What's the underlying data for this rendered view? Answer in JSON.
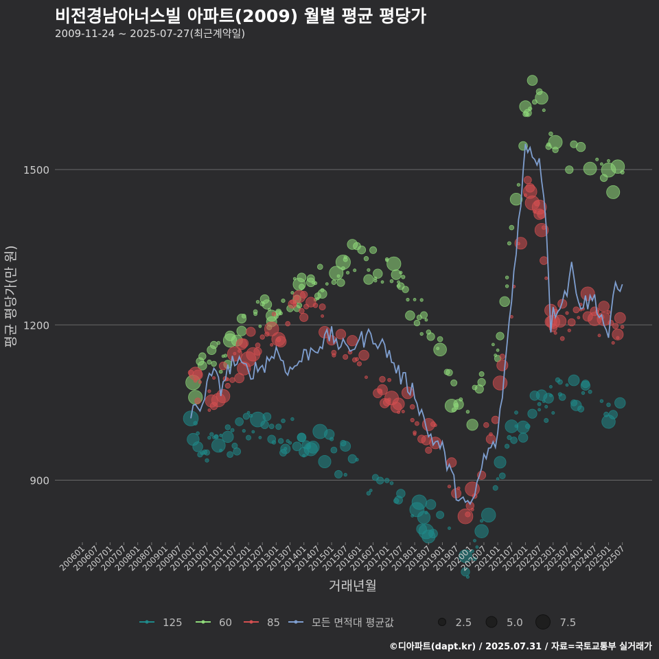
{
  "title": "비전경남아너스빌 아파트(2009) 월별 평균 평당가",
  "subtitle": "2009-11-24 ~ 2025-07-27(최근계약일)",
  "caption": "©디아파트(dapt.kr) / 2025.07.31 / 자료=국토교통부 실거래가",
  "chart_data": {
    "type": "line",
    "xlabel": "거래년월",
    "ylabel": "평균 평당가(만 원)",
    "ylim": [
      780,
      1740
    ],
    "yticks": [
      900,
      1200,
      1500
    ],
    "grid": true,
    "legend_position": "bottom",
    "x_start": "200601",
    "x_end": "202508",
    "x_tick_labels": [
      "200601",
      "200607",
      "200701",
      "200707",
      "200801",
      "200807",
      "200901",
      "200907",
      "201001",
      "201007",
      "201101",
      "201107",
      "201201",
      "201207",
      "201301",
      "201307",
      "201401",
      "201407",
      "201501",
      "201507",
      "201601",
      "201607",
      "201701",
      "201707",
      "201801",
      "201807",
      "201901",
      "201907",
      "202001",
      "202007",
      "202101",
      "202107",
      "202201",
      "202207",
      "202301",
      "202307",
      "202401",
      "202407",
      "202501",
      "202507"
    ],
    "series": [
      {
        "name": "125",
        "color": "#1f8a8a",
        "anchors": [
          [
            "200912",
            1010
          ],
          [
            "201006",
            960
          ],
          [
            "201201",
            1000
          ],
          [
            "201401",
            980
          ],
          [
            "201506",
            940
          ],
          [
            "201701",
            880
          ],
          [
            "201801",
            840
          ],
          [
            "201906",
            790
          ],
          [
            "202001",
            740
          ],
          [
            "202006",
            800
          ],
          [
            "202101",
            900
          ],
          [
            "202107",
            1000
          ],
          [
            "202307",
            1080
          ],
          [
            "202501",
            1030
          ],
          [
            "202507",
            1020
          ]
        ]
      },
      {
        "name": "60",
        "color": "#8fd97a",
        "anchors": [
          [
            "201001",
            1090
          ],
          [
            "201101",
            1140
          ],
          [
            "201201",
            1200
          ],
          [
            "201301",
            1240
          ],
          [
            "201401",
            1270
          ],
          [
            "201501",
            1300
          ],
          [
            "201507",
            1320
          ],
          [
            "201601",
            1330
          ],
          [
            "201701",
            1300
          ],
          [
            "201801",
            1240
          ],
          [
            "201901",
            1140
          ],
          [
            "201907",
            1040
          ],
          [
            "202001",
            1030
          ],
          [
            "202007",
            1090
          ],
          [
            "202101",
            1160
          ],
          [
            "202107",
            1360
          ],
          [
            "202201",
            1600
          ],
          [
            "202207",
            1680
          ],
          [
            "202301",
            1520
          ],
          [
            "202401",
            1530
          ],
          [
            "202501",
            1490
          ],
          [
            "202507",
            1480
          ]
        ]
      },
      {
        "name": "85",
        "color": "#d44f50",
        "anchors": [
          [
            "200912",
            1090
          ],
          [
            "201006",
            1060
          ],
          [
            "201101",
            1090
          ],
          [
            "201201",
            1150
          ],
          [
            "201301",
            1190
          ],
          [
            "201401",
            1240
          ],
          [
            "201501",
            1180
          ],
          [
            "201601",
            1120
          ],
          [
            "201701",
            1080
          ],
          [
            "201801",
            1020
          ],
          [
            "201901",
            960
          ],
          [
            "201907",
            880
          ],
          [
            "202001",
            840
          ],
          [
            "202007",
            960
          ],
          [
            "202101",
            1060
          ],
          [
            "202107",
            1250
          ],
          [
            "202201",
            1460
          ],
          [
            "202207",
            1440
          ],
          [
            "202301",
            1190
          ],
          [
            "202401",
            1240
          ],
          [
            "202501",
            1200
          ],
          [
            "202507",
            1190
          ]
        ]
      },
      {
        "name": "모든 면적대 평균값",
        "color": "#7f9fd0",
        "anchors": [
          [
            "200912",
            1020
          ],
          [
            "201001",
            1030
          ],
          [
            "201006",
            1060
          ],
          [
            "201009",
            1110
          ],
          [
            "201101",
            1080
          ],
          [
            "201106",
            1130
          ],
          [
            "201201",
            1110
          ],
          [
            "201207",
            1120
          ],
          [
            "201301",
            1150
          ],
          [
            "201307",
            1110
          ],
          [
            "201401",
            1140
          ],
          [
            "201407",
            1160
          ],
          [
            "201501",
            1180
          ],
          [
            "201507",
            1150
          ],
          [
            "201601",
            1170
          ],
          [
            "201607",
            1180
          ],
          [
            "201701",
            1150
          ],
          [
            "201707",
            1100
          ],
          [
            "201801",
            1070
          ],
          [
            "201807",
            990
          ],
          [
            "201901",
            960
          ],
          [
            "201907",
            880
          ],
          [
            "202001",
            840
          ],
          [
            "202007",
            940
          ],
          [
            "202101",
            980
          ],
          [
            "202107",
            1250
          ],
          [
            "202110",
            1400
          ],
          [
            "202201",
            1540
          ],
          [
            "202207",
            1520
          ],
          [
            "202208",
            1490
          ],
          [
            "202210",
            1400
          ],
          [
            "202212",
            1200
          ],
          [
            "202301",
            1220
          ],
          [
            "202307",
            1270
          ],
          [
            "202309",
            1310
          ],
          [
            "202401",
            1240
          ],
          [
            "202407",
            1250
          ],
          [
            "202501",
            1180
          ],
          [
            "202504",
            1270
          ],
          [
            "202507",
            1270
          ]
        ]
      }
    ],
    "size_legend": {
      "labels": [
        "2.5",
        "5.0",
        "7.5"
      ],
      "values": [
        2.5,
        5.0,
        7.5
      ]
    }
  }
}
